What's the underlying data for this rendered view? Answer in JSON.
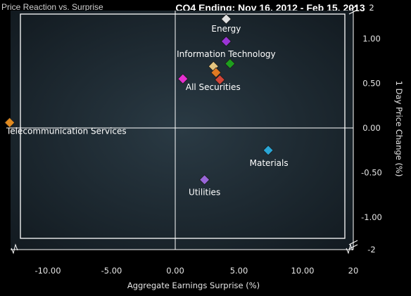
{
  "header": {
    "left_title": "Price Reaction vs. Surprise",
    "title": "CQ4 Ending: Nov 16, 2012 - Feb 15, 2013"
  },
  "chart_data": {
    "type": "scatter",
    "title": "CQ4 Ending: Nov 16, 2012 - Feb 15, 2013",
    "xlabel": "Aggregate Earnings Surprise (%)",
    "ylabel": "1 Day Price Change (%)",
    "xlim": [
      -15,
      20
    ],
    "ylim": [
      -2,
      2
    ],
    "x_ticks": [
      {
        "value": -10,
        "label": "-10.00"
      },
      {
        "value": -5,
        "label": "-5.00"
      },
      {
        "value": 0,
        "label": "0.00"
      },
      {
        "value": 5,
        "label": "5.00"
      },
      {
        "value": 10,
        "label": "10.00"
      },
      {
        "value": 20,
        "label": "20"
      }
    ],
    "y_ticks": [
      {
        "value": 2,
        "label": "2"
      },
      {
        "value": 1,
        "label": "1.00"
      },
      {
        "value": 0.5,
        "label": "0.50"
      },
      {
        "value": 0,
        "label": "0.00"
      },
      {
        "value": -0.5,
        "label": "-0.50"
      },
      {
        "value": -1,
        "label": "-1.00"
      },
      {
        "value": -2,
        "label": "-2"
      }
    ],
    "grid": false,
    "points": [
      {
        "label": "Energy",
        "x": 4.0,
        "y": 1.22,
        "color": "#e0e0e0"
      },
      {
        "label": "Information Technology",
        "x": 4.0,
        "y": 0.97,
        "color": "#9b35d6"
      },
      {
        "label": "",
        "x": 4.3,
        "y": 0.72,
        "color": "#1e9e1e"
      },
      {
        "label": "",
        "x": 3.0,
        "y": 0.69,
        "color": "#e4c47e"
      },
      {
        "label": "",
        "x": 3.2,
        "y": 0.62,
        "color": "#e07a22"
      },
      {
        "label": "",
        "x": 3.5,
        "y": 0.54,
        "color": "#d24538"
      },
      {
        "label": "All Securities",
        "x": 0.6,
        "y": 0.55,
        "color": "#e630d0"
      },
      {
        "label": "Telecommunication Services",
        "x": -13.0,
        "y": 0.06,
        "color": "#e08a20"
      },
      {
        "label": "Materials",
        "x": 7.3,
        "y": -0.25,
        "color": "#2aa6d6"
      },
      {
        "label": "Utilities",
        "x": 2.3,
        "y": -0.58,
        "color": "#9966d8"
      }
    ],
    "colors": {
      "background": "#000000",
      "plot_fill": "#1d2a33",
      "frame": "#ffffff",
      "text": "#e6e6e6"
    }
  }
}
